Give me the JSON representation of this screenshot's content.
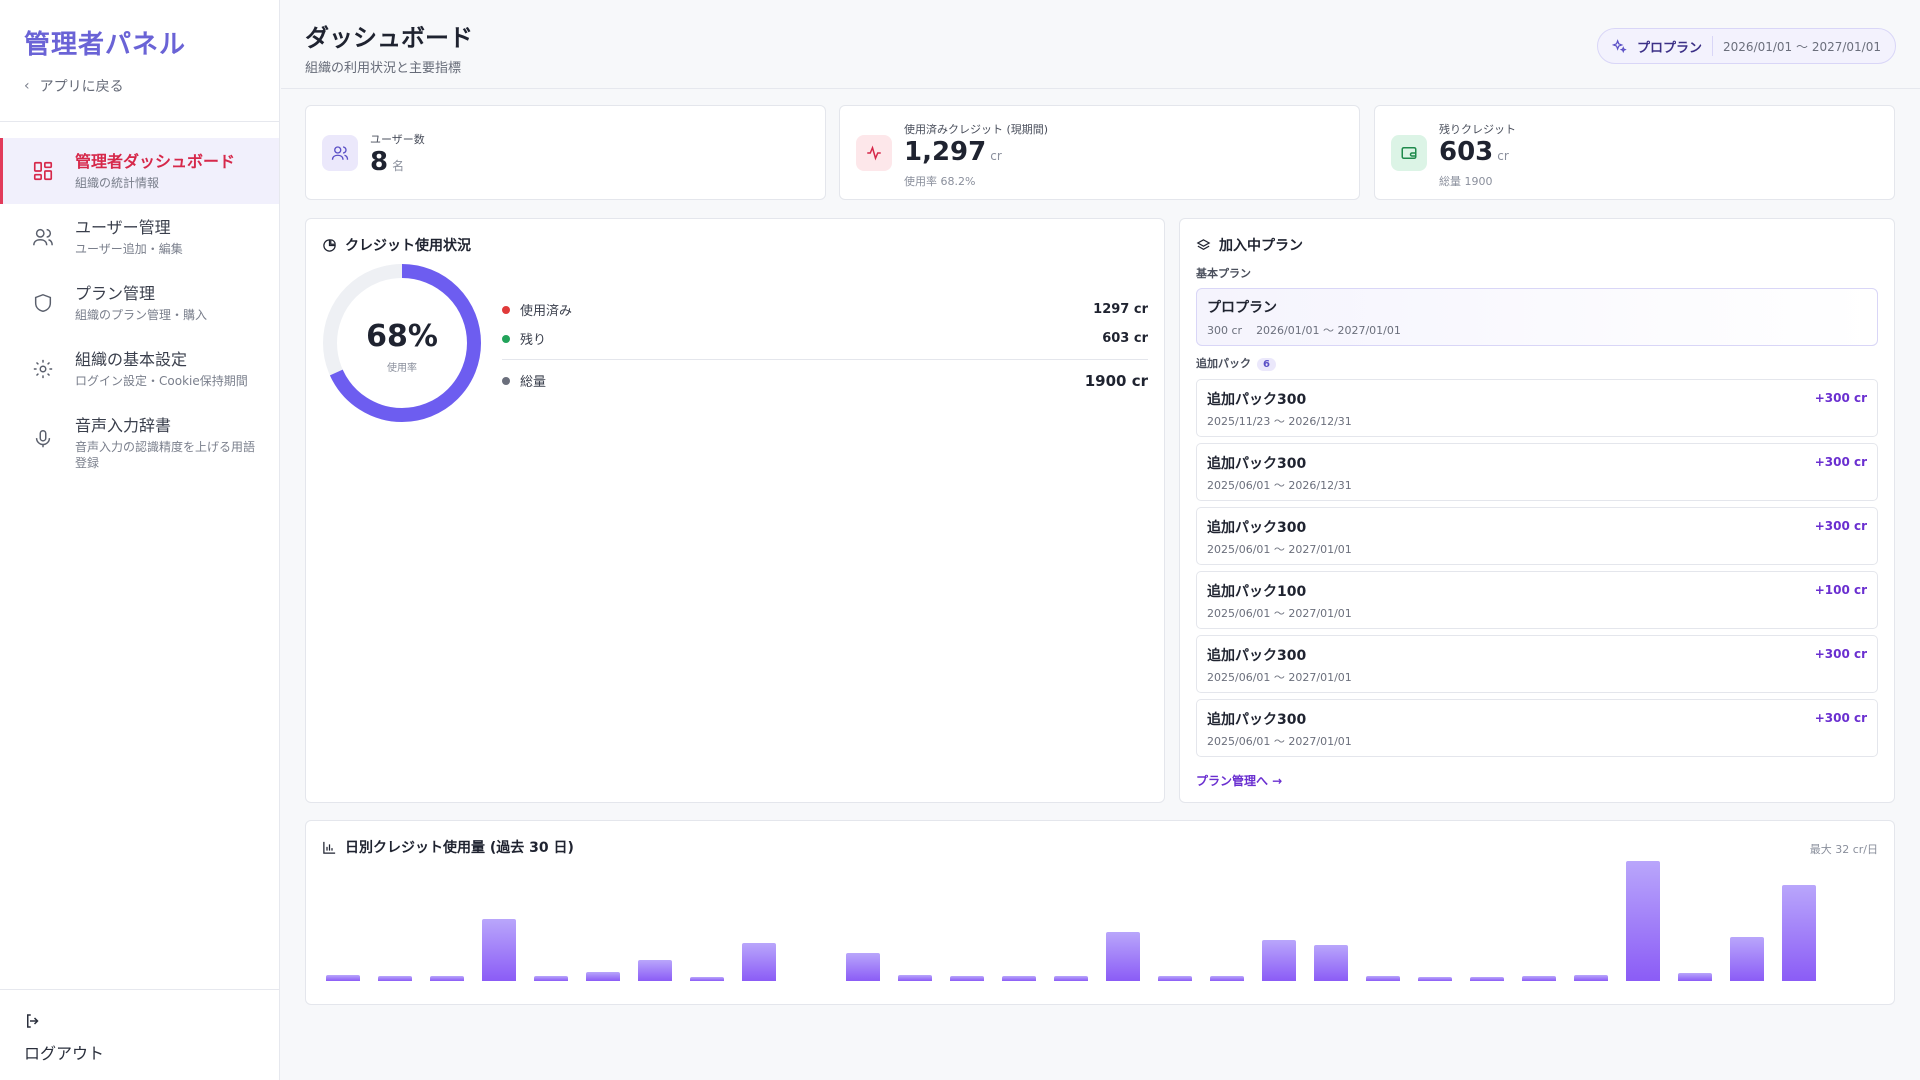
{
  "sidebar": {
    "brand": "管理者パネル",
    "back": "アプリに戻る",
    "items": [
      {
        "label": "管理者ダッシュボード",
        "sub": "組織の統計情報"
      },
      {
        "label": "ユーザー管理",
        "sub": "ユーザー追加・編集"
      },
      {
        "label": "プラン管理",
        "sub": "組織のプラン管理・購入"
      },
      {
        "label": "組織の基本設定",
        "sub": "ログイン設定・Cookie保持期間"
      },
      {
        "label": "音声入力辞書",
        "sub": "音声入力の認識精度を上げる用語登録"
      }
    ],
    "logout": "ログアウト"
  },
  "header": {
    "title": "ダッシュボード",
    "subtitle": "組織の利用状況と主要指標",
    "plan_name": "プロプラン",
    "plan_period": "2026/01/01 〜 2027/01/01"
  },
  "stats": {
    "users": {
      "label": "ユーザー数",
      "value": "8",
      "unit": "名"
    },
    "used": {
      "label": "使用済みクレジット (現期間)",
      "value": "1,297",
      "unit": "cr",
      "sub": "使用率 68.2%"
    },
    "remaining": {
      "label": "残りクレジット",
      "value": "603",
      "unit": "cr",
      "sub": "総量 1900"
    }
  },
  "credit_usage": {
    "title": "クレジット使用状況",
    "percent": "68%",
    "percent_label": "使用率",
    "used_fraction": 0.6826,
    "legend": [
      {
        "label": "使用済み",
        "value": "1297 cr",
        "color": "#e03a3a"
      },
      {
        "label": "残り",
        "value": "603 cr",
        "color": "#22a35a"
      }
    ],
    "total": {
      "label": "総量",
      "value": "1900 cr",
      "color": "#6b6f7c"
    }
  },
  "plan": {
    "title": "加入中プラン",
    "base_label": "基本プラン",
    "base_name": "プロプラン",
    "base_credit": "300 cr",
    "base_period": "2026/01/01 〜 2027/01/01",
    "packs_label": "追加パック",
    "packs_count": "6",
    "packs": [
      {
        "name": "追加パック300",
        "period": "2025/11/23 〜 2026/12/31",
        "credit": "+300 cr"
      },
      {
        "name": "追加パック300",
        "period": "2025/06/01 〜 2026/12/31",
        "credit": "+300 cr"
      },
      {
        "name": "追加パック300",
        "period": "2025/06/01 〜 2027/01/01",
        "credit": "+300 cr"
      },
      {
        "name": "追加パック100",
        "period": "2025/06/01 〜 2027/01/01",
        "credit": "+100 cr"
      },
      {
        "name": "追加パック300",
        "period": "2025/06/01 〜 2027/01/01",
        "credit": "+300 cr"
      },
      {
        "name": "追加パック300",
        "period": "2025/06/01 〜 2027/01/01",
        "credit": "+300 cr"
      }
    ],
    "link": "プラン管理へ →"
  },
  "chart_data": {
    "type": "bar",
    "title": "日別クレジット使用量 (過去 30 日)",
    "max_label": "最大 32 cr/日",
    "ylim": [
      0,
      32
    ],
    "values": [
      1.5,
      1.2,
      1.2,
      16.5,
      1.3,
      2.5,
      5.5,
      1.1,
      10,
      0,
      7.5,
      1.5,
      1.2,
      1.3,
      1.3,
      13,
      1.2,
      1.3,
      11,
      9.5,
      1.2,
      1.1,
      1.1,
      1.2,
      1.6,
      32,
      2,
      11.8,
      25.5,
      0
    ]
  }
}
